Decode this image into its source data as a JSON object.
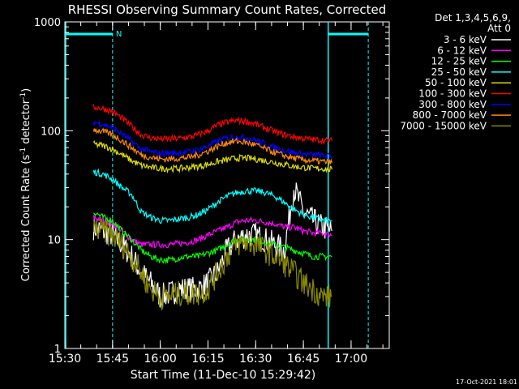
{
  "chart_data": {
    "type": "line",
    "title": "RHESSI Observing Summary Count Rates, Corrected",
    "xlabel": "Start Time (11-Dec-10 15:29:42)",
    "ylabel_main": "Corrected Count Rate (s",
    "ylabel_sup1": "-1",
    "ylabel_mid": " detector",
    "ylabel_sup2": "-1",
    "ylabel_end": ")",
    "xlim": [
      15.5,
      17.2
    ],
    "ylim": [
      1,
      1000
    ],
    "yscale": "log",
    "x_ticks": [
      "15:30",
      "15:45",
      "16:00",
      "16:15",
      "16:30",
      "16:45",
      "17:00"
    ],
    "x_tick_values": [
      15.5,
      15.75,
      16.0,
      16.25,
      16.5,
      16.75,
      17.0
    ],
    "y_ticks": [
      "1",
      "10",
      "100",
      "1000"
    ],
    "y_tick_values": [
      1,
      10,
      100,
      1000
    ],
    "legend_header_1": "Det 1,3,4,5,6,9,",
    "legend_header_2": "Att 0",
    "legend_position": "right",
    "annotation_n": "N",
    "timestamp": "17-Oct-2021 18:01",
    "series": [
      {
        "name": "3 - 6 keV",
        "color": "#ffffff",
        "x": [
          15.65,
          15.7,
          15.75,
          15.8,
          15.85,
          15.9,
          15.95,
          16.0,
          16.05,
          16.1,
          16.15,
          16.2,
          16.25,
          16.3,
          16.35,
          16.4,
          16.45,
          16.5,
          16.55,
          16.6,
          16.65,
          16.7,
          16.75,
          16.8,
          16.85,
          16.9
        ],
        "y": [
          13,
          12,
          11,
          9,
          7,
          5,
          4,
          3,
          3.2,
          3.5,
          3.5,
          3.5,
          4,
          5,
          8,
          10,
          11,
          11,
          10,
          9,
          8,
          30,
          18,
          15,
          13,
          12
        ]
      },
      {
        "name": "6 - 12 keV",
        "color": "#ff00ff",
        "x": [
          15.65,
          15.7,
          15.75,
          15.8,
          15.85,
          15.9,
          15.95,
          16.0,
          16.05,
          16.1,
          16.15,
          16.2,
          16.25,
          16.3,
          16.35,
          16.4,
          16.45,
          16.5,
          16.55,
          16.6,
          16.65,
          16.7,
          16.75,
          16.8,
          16.85,
          16.9
        ],
        "y": [
          16,
          15,
          14,
          12,
          10,
          9,
          9,
          9,
          9,
          9.2,
          9.5,
          10,
          11,
          12,
          13,
          14.5,
          15,
          15,
          14.5,
          14,
          13,
          13,
          12,
          11.5,
          11.5,
          11
        ]
      },
      {
        "name": "12 - 25 keV",
        "color": "#00ff00",
        "x": [
          15.65,
          15.7,
          15.75,
          15.8,
          15.85,
          15.9,
          15.95,
          16.0,
          16.05,
          16.1,
          16.15,
          16.2,
          16.25,
          16.3,
          16.35,
          16.4,
          16.45,
          16.5,
          16.55,
          16.6,
          16.65,
          16.7,
          16.75,
          16.8,
          16.85,
          16.9
        ],
        "y": [
          18,
          16,
          15,
          12,
          10,
          8,
          7,
          6.5,
          6.5,
          6.8,
          7,
          7,
          7.5,
          8,
          9,
          10,
          10,
          10,
          9.5,
          9,
          8.5,
          8,
          7.5,
          7,
          7,
          7
        ]
      },
      {
        "name": "25 - 50 keV",
        "color": "#00ffff",
        "x": [
          15.65,
          15.7,
          15.75,
          15.8,
          15.85,
          15.9,
          15.95,
          16.0,
          16.05,
          16.1,
          16.15,
          16.2,
          16.25,
          16.3,
          16.35,
          16.4,
          16.45,
          16.5,
          16.55,
          16.6,
          16.65,
          16.7,
          16.75,
          16.8,
          16.85,
          16.9
        ],
        "y": [
          42,
          40,
          36,
          30,
          26,
          18,
          16,
          15,
          15,
          15.5,
          16,
          17,
          19,
          22,
          25,
          27,
          28,
          28,
          27,
          25,
          22,
          19,
          17,
          16,
          15,
          15
        ]
      },
      {
        "name": "50 - 100 keV",
        "color": "#dddd00",
        "x": [
          15.65,
          15.7,
          15.75,
          15.8,
          15.85,
          15.9,
          15.95,
          16.0,
          16.05,
          16.1,
          16.15,
          16.2,
          16.25,
          16.3,
          16.35,
          16.4,
          16.45,
          16.5,
          16.55,
          16.6,
          16.65,
          16.7,
          16.75,
          16.8,
          16.85,
          16.9
        ],
        "y": [
          75,
          73,
          68,
          60,
          53,
          48,
          46,
          45,
          45,
          45,
          46,
          47,
          49,
          52,
          54,
          56,
          56,
          55,
          53,
          51,
          49,
          47,
          46,
          45,
          45,
          44
        ]
      },
      {
        "name": "100 - 300 keV",
        "color": "#ff0000",
        "x": [
          15.65,
          15.7,
          15.75,
          15.8,
          15.85,
          15.9,
          15.95,
          16.0,
          16.05,
          16.1,
          16.15,
          16.2,
          16.25,
          16.3,
          16.35,
          16.4,
          16.45,
          16.5,
          16.55,
          16.6,
          16.65,
          16.7,
          16.75,
          16.8,
          16.85,
          16.9
        ],
        "y": [
          165,
          160,
          150,
          130,
          110,
          92,
          86,
          84,
          84,
          85,
          87,
          92,
          100,
          112,
          120,
          124,
          122,
          115,
          106,
          98,
          92,
          88,
          85,
          83,
          82,
          81
        ]
      },
      {
        "name": "300 - 800 keV",
        "color": "#0000ff",
        "x": [
          15.65,
          15.7,
          15.75,
          15.8,
          15.85,
          15.9,
          15.95,
          16.0,
          16.05,
          16.1,
          16.15,
          16.2,
          16.25,
          16.3,
          16.35,
          16.4,
          16.45,
          16.5,
          16.55,
          16.6,
          16.65,
          16.7,
          16.75,
          16.8,
          16.85,
          16.9
        ],
        "y": [
          120,
          115,
          107,
          93,
          80,
          68,
          64,
          62,
          62,
          63,
          64,
          67,
          72,
          80,
          86,
          88,
          86,
          82,
          76,
          70,
          66,
          63,
          61,
          60,
          59,
          58
        ]
      },
      {
        "name": "800 - 7000 keV",
        "color": "#ff8800",
        "x": [
          15.65,
          15.7,
          15.75,
          15.8,
          15.85,
          15.9,
          15.95,
          16.0,
          16.05,
          16.1,
          16.15,
          16.2,
          16.25,
          16.3,
          16.35,
          16.4,
          16.45,
          16.5,
          16.55,
          16.6,
          16.65,
          16.7,
          16.75,
          16.8,
          16.85,
          16.9
        ],
        "y": [
          103,
          98,
          92,
          81,
          70,
          60,
          57,
          55,
          55,
          56,
          57,
          60,
          65,
          72,
          78,
          80,
          78,
          74,
          68,
          63,
          59,
          56,
          54,
          53,
          52,
          51
        ]
      },
      {
        "name": "7000 - 15000 keV",
        "color": "#888800",
        "x": [
          15.65,
          15.7,
          15.75,
          15.8,
          15.85,
          15.9,
          15.95,
          16.0,
          16.05,
          16.1,
          16.15,
          16.2,
          16.25,
          16.3,
          16.35,
          16.4,
          16.45,
          16.5,
          16.55,
          16.6,
          16.65,
          16.7,
          16.75,
          16.8,
          16.85,
          16.9
        ],
        "y": [
          12.5,
          12,
          11,
          9,
          7,
          5,
          3.5,
          3,
          3,
          3.2,
          3.2,
          3.2,
          3.5,
          5,
          7,
          9,
          9.5,
          9,
          8,
          7,
          6,
          5,
          4,
          3.5,
          3,
          3
        ]
      }
    ]
  }
}
